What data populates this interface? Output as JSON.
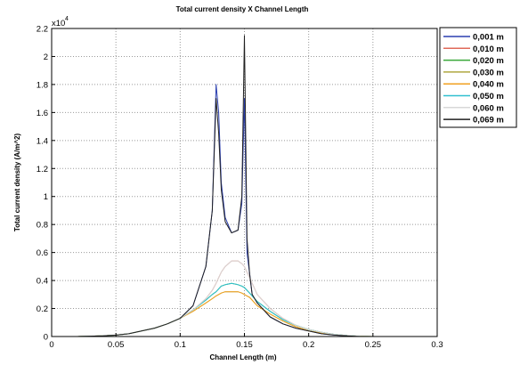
{
  "chart_data": {
    "type": "line",
    "title": "Total current density X Channel Length",
    "xlabel": "Channel Length (m)",
    "ylabel": "Total current density (A/m^2)",
    "y_exponent_label": "x10",
    "y_exponent_power": "4",
    "xlim": [
      0,
      0.3
    ],
    "ylim": [
      0,
      2.2
    ],
    "y_multiplier": 10000,
    "xticks": [
      "0",
      "0.05",
      "0.1",
      "0.15",
      "0.2",
      "0.25",
      "0.3"
    ],
    "yticks": [
      "0",
      "0.2",
      "0.4",
      "0.6",
      "0.8",
      "1",
      "1.2",
      "1.4",
      "1.6",
      "1.8",
      "2",
      "2.2"
    ],
    "grid": true,
    "legend_position": "outside-top-right",
    "x": [
      0.0,
      0.02,
      0.04,
      0.05,
      0.06,
      0.07,
      0.08,
      0.09,
      0.1,
      0.11,
      0.12,
      0.125,
      0.128,
      0.13,
      0.132,
      0.135,
      0.14,
      0.145,
      0.148,
      0.15,
      0.152,
      0.154,
      0.156,
      0.16,
      0.17,
      0.18,
      0.19,
      0.2,
      0.21,
      0.22,
      0.23,
      0.24,
      0.25,
      0.26
    ],
    "series": [
      {
        "name": "0,001 m",
        "color": "#2b3fb0",
        "values": [
          0.0,
          0.0,
          0.005,
          0.01,
          0.02,
          0.04,
          0.06,
          0.09,
          0.13,
          0.22,
          0.5,
          0.9,
          1.8,
          1.6,
          1.1,
          0.85,
          0.74,
          0.76,
          0.95,
          1.7,
          0.6,
          0.45,
          0.3,
          0.24,
          0.14,
          0.09,
          0.06,
          0.04,
          0.02,
          0.01,
          0.005,
          0.0,
          0.0,
          0.0
        ]
      },
      {
        "name": "0,010 m",
        "color": "#e06a5a",
        "values": [
          0.0,
          0.0,
          0.005,
          0.01,
          0.02,
          0.04,
          0.06,
          0.09,
          0.13,
          0.19,
          0.27,
          0.33,
          0.38,
          0.42,
          0.46,
          0.5,
          0.54,
          0.54,
          0.52,
          0.5,
          0.46,
          0.42,
          0.38,
          0.3,
          0.2,
          0.13,
          0.08,
          0.05,
          0.03,
          0.015,
          0.007,
          0.002,
          0.0,
          0.0
        ]
      },
      {
        "name": "0,020 m",
        "color": "#3aa83a",
        "values": [
          0.0,
          0.0,
          0.005,
          0.01,
          0.02,
          0.04,
          0.06,
          0.09,
          0.13,
          0.19,
          0.26,
          0.3,
          0.32,
          0.34,
          0.36,
          0.37,
          0.38,
          0.37,
          0.36,
          0.35,
          0.33,
          0.31,
          0.29,
          0.25,
          0.18,
          0.12,
          0.08,
          0.05,
          0.03,
          0.015,
          0.007,
          0.002,
          0.0,
          0.0
        ]
      },
      {
        "name": "0,030 m",
        "color": "#b0a840",
        "values": [
          0.0,
          0.0,
          0.005,
          0.01,
          0.02,
          0.04,
          0.06,
          0.09,
          0.13,
          0.18,
          0.24,
          0.27,
          0.29,
          0.3,
          0.31,
          0.32,
          0.32,
          0.32,
          0.31,
          0.3,
          0.29,
          0.28,
          0.26,
          0.22,
          0.16,
          0.11,
          0.07,
          0.04,
          0.025,
          0.013,
          0.006,
          0.002,
          0.0,
          0.0
        ]
      },
      {
        "name": "0,040 m",
        "color": "#f0a020",
        "values": [
          0.0,
          0.0,
          0.005,
          0.01,
          0.02,
          0.04,
          0.06,
          0.09,
          0.13,
          0.18,
          0.24,
          0.27,
          0.29,
          0.3,
          0.31,
          0.32,
          0.32,
          0.32,
          0.31,
          0.3,
          0.29,
          0.28,
          0.26,
          0.22,
          0.16,
          0.11,
          0.07,
          0.04,
          0.025,
          0.013,
          0.006,
          0.002,
          0.0,
          0.0
        ]
      },
      {
        "name": "0,050 m",
        "color": "#30c0d0",
        "values": [
          0.0,
          0.0,
          0.005,
          0.01,
          0.02,
          0.04,
          0.06,
          0.09,
          0.13,
          0.19,
          0.26,
          0.3,
          0.32,
          0.34,
          0.36,
          0.37,
          0.38,
          0.37,
          0.36,
          0.35,
          0.33,
          0.31,
          0.29,
          0.25,
          0.18,
          0.12,
          0.08,
          0.05,
          0.03,
          0.015,
          0.007,
          0.002,
          0.0,
          0.0
        ]
      },
      {
        "name": "0,060 m",
        "color": "#d8d8d8",
        "values": [
          0.0,
          0.0,
          0.005,
          0.01,
          0.02,
          0.04,
          0.06,
          0.09,
          0.13,
          0.19,
          0.27,
          0.33,
          0.38,
          0.42,
          0.46,
          0.5,
          0.54,
          0.54,
          0.52,
          0.5,
          0.46,
          0.42,
          0.38,
          0.3,
          0.2,
          0.13,
          0.08,
          0.05,
          0.03,
          0.015,
          0.007,
          0.002,
          0.0,
          0.0
        ]
      },
      {
        "name": "0,069 m",
        "color": "#202020",
        "values": [
          0.0,
          0.0,
          0.005,
          0.01,
          0.02,
          0.04,
          0.06,
          0.09,
          0.13,
          0.22,
          0.5,
          0.9,
          1.7,
          1.45,
          1.05,
          0.82,
          0.74,
          0.76,
          1.0,
          2.15,
          0.7,
          0.45,
          0.3,
          0.24,
          0.14,
          0.09,
          0.06,
          0.04,
          0.02,
          0.01,
          0.005,
          0.0,
          0.0,
          0.0
        ]
      }
    ]
  }
}
